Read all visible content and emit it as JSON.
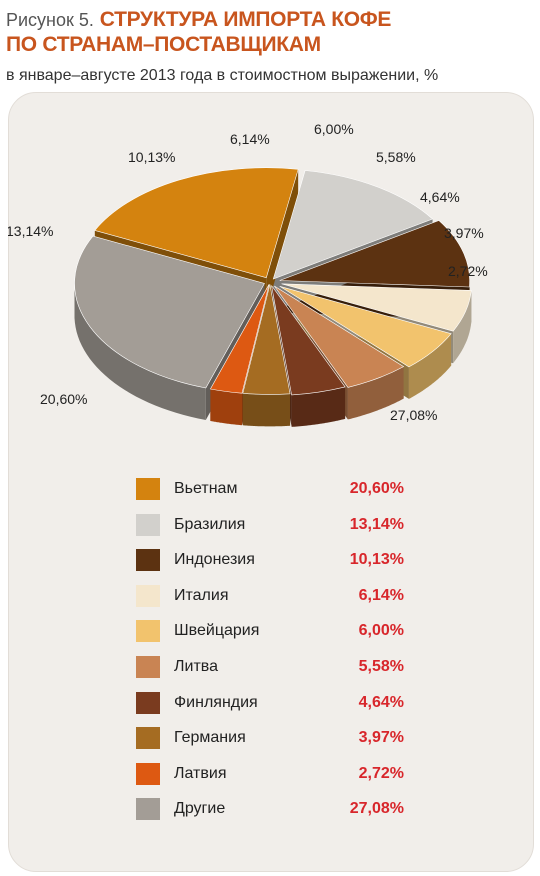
{
  "header": {
    "figure_label": "Рисунок 5.",
    "title_line1": "СТРУКТУРА ИМПОРТА КОФЕ",
    "title_line2": "ПО СТРАНАМ–ПОСТАВЩИКАМ",
    "subtitle": "в январе–августе 2013 года в стоимостном выражении, %"
  },
  "chart_data": {
    "type": "pie",
    "title": "СТРУКТУРА ИМПОРТА КОФЕ ПО СТРАНАМ–ПОСТАВЩИКАМ",
    "subtitle": "в январе–августе 2013 года в стоимостном выражении, %",
    "legend_position": "bottom",
    "slices": [
      {
        "name": "Вьетнам",
        "value": 20.6,
        "label": "20,60%",
        "color": "#d4830f"
      },
      {
        "name": "Бразилия",
        "value": 13.14,
        "label": "13,14%",
        "color": "#d2d0cc"
      },
      {
        "name": "Индонезия",
        "value": 10.13,
        "label": "10,13%",
        "color": "#5c3211"
      },
      {
        "name": "Италия",
        "value": 6.14,
        "label": "6,14%",
        "color": "#f4e6cc"
      },
      {
        "name": "Швейцария",
        "value": 6.0,
        "label": "6,00%",
        "color": "#f2c36d"
      },
      {
        "name": "Литва",
        "value": 5.58,
        "label": "5,58%",
        "color": "#c98453"
      },
      {
        "name": "Финляндия",
        "value": 4.64,
        "label": "4,64%",
        "color": "#7a3b1f"
      },
      {
        "name": "Германия",
        "value": 3.97,
        "label": "3,97%",
        "color": "#a56c22"
      },
      {
        "name": "Латвия",
        "value": 2.72,
        "label": "2,72%",
        "color": "#dd5912"
      },
      {
        "name": "Другие",
        "value": 27.08,
        "label": "27,08%",
        "color": "#a39d96"
      }
    ]
  }
}
